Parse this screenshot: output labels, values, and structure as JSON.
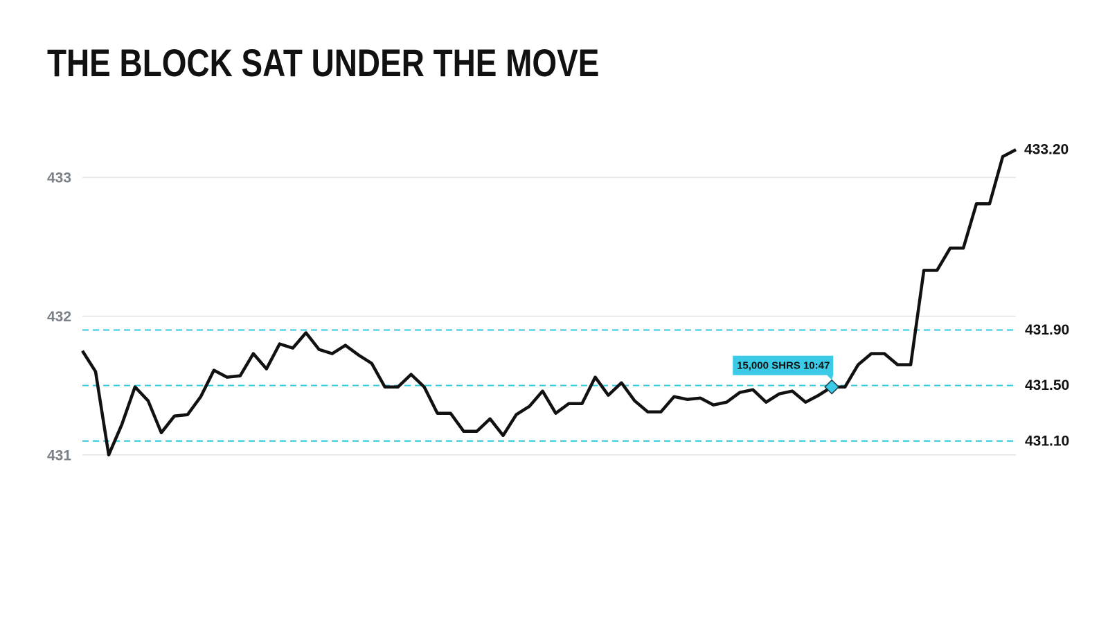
{
  "chart_data": {
    "type": "line",
    "title": "THE BLOCK SAT UNDER THE MOVE",
    "series": [
      {
        "color": "#111111",
        "values": [
          431.75,
          431.6,
          431.0,
          431.22,
          431.49,
          431.39,
          431.16,
          431.28,
          431.29,
          431.42,
          431.61,
          431.56,
          431.57,
          431.73,
          431.62,
          431.8,
          431.77,
          431.88,
          431.76,
          431.73,
          431.79,
          431.72,
          431.66,
          431.49,
          431.49,
          431.58,
          431.49,
          431.3,
          431.3,
          431.17,
          431.17,
          431.26,
          431.14,
          431.29,
          431.35,
          431.46,
          431.3,
          431.37,
          431.37,
          431.56,
          431.43,
          431.52,
          431.39,
          431.31,
          431.31,
          431.42,
          431.4,
          431.41,
          431.36,
          431.38,
          431.45,
          431.47,
          431.38,
          431.44,
          431.46,
          431.38,
          431.43,
          431.49,
          431.49,
          431.65,
          431.73,
          431.73,
          431.65,
          431.65,
          432.33,
          432.33,
          432.49,
          432.49,
          432.81,
          432.81,
          433.15,
          433.2
        ],
        "value_labels": [
          null,
          null,
          null,
          null,
          null,
          null,
          null,
          null,
          null,
          null,
          null,
          null,
          null,
          null,
          null,
          null,
          null,
          null,
          null,
          null,
          null,
          null,
          null,
          null,
          null,
          null,
          null,
          null,
          null,
          null,
          null,
          null,
          null,
          null,
          null,
          null,
          null,
          null,
          null,
          null,
          null,
          null,
          null,
          null,
          null,
          null,
          null,
          null,
          null,
          null,
          null,
          null,
          null,
          null,
          null,
          null,
          null,
          null,
          null,
          null,
          null,
          null,
          null,
          null,
          null,
          null,
          null,
          null,
          null,
          null,
          null,
          "433.20"
        ]
      }
    ],
    "ylim": [
      430.5,
      433.5
    ],
    "yticks": [
      431,
      432,
      433
    ],
    "grid": true,
    "reference_lines": [
      {
        "value": 431.9,
        "label": "431.90"
      },
      {
        "value": 431.5,
        "label": "431.50"
      },
      {
        "value": 431.1,
        "label": "431.10"
      }
    ],
    "reference_color": "#2ec8dc",
    "annotation": {
      "text": "15,000 SHRS 10:47",
      "index": 57,
      "color": "#3ccbe6"
    }
  }
}
